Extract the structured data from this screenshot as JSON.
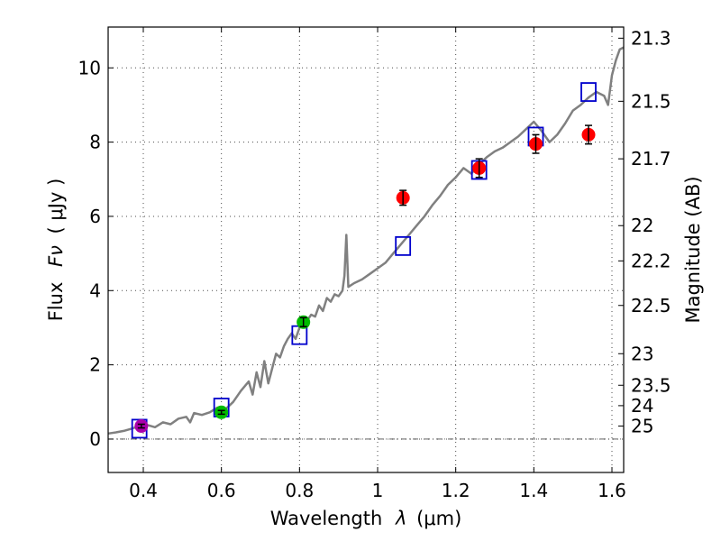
{
  "chart_data": {
    "type": "scatter",
    "xlabel": "Wavelength",
    "xlabel_symbol": "λ",
    "xlabel_unit": "(μm)",
    "ylabel": "Flux",
    "ylabel_symbol": "Fν",
    "ylabel_unit": "( μJy )",
    "y2label": "Magnitude (AB)",
    "xlim": [
      0.31,
      1.63
    ],
    "ylim": [
      -0.9,
      11.1
    ],
    "grid": true,
    "x_ticks": [
      0.4,
      0.6,
      0.8,
      1.0,
      1.2,
      1.4,
      1.6
    ],
    "x_tick_labels": [
      "0.4",
      "0.6",
      "0.8",
      "1",
      "1.2",
      "1.4",
      "1.6"
    ],
    "y_ticks": [
      0,
      2,
      4,
      6,
      8,
      10
    ],
    "y_tick_labels": [
      "0",
      "2",
      "4",
      "6",
      "8",
      "10"
    ],
    "magnitude_ticks": [
      {
        "label": "21.3",
        "flux": 10.8
      },
      {
        "label": "21.5",
        "flux": 9.1
      },
      {
        "label": "21.7",
        "flux": 7.55
      },
      {
        "label": "22",
        "flux": 5.75
      },
      {
        "label": "22.2",
        "flux": 4.8
      },
      {
        "label": "22.5",
        "flux": 3.6
      },
      {
        "label": "23",
        "flux": 2.3
      },
      {
        "label": "23.5",
        "flux": 1.45
      },
      {
        "label": "24",
        "flux": 0.9
      },
      {
        "label": "25",
        "flux": 0.35
      }
    ],
    "series": [
      {
        "name": "template spectrum",
        "kind": "line",
        "color": "#808080",
        "points": [
          [
            0.31,
            0.15
          ],
          [
            0.33,
            0.18
          ],
          [
            0.35,
            0.22
          ],
          [
            0.37,
            0.28
          ],
          [
            0.39,
            0.35
          ],
          [
            0.41,
            0.38
          ],
          [
            0.43,
            0.32
          ],
          [
            0.45,
            0.45
          ],
          [
            0.47,
            0.4
          ],
          [
            0.49,
            0.55
          ],
          [
            0.51,
            0.6
          ],
          [
            0.52,
            0.45
          ],
          [
            0.53,
            0.7
          ],
          [
            0.55,
            0.65
          ],
          [
            0.57,
            0.72
          ],
          [
            0.59,
            0.85
          ],
          [
            0.61,
            0.8
          ],
          [
            0.63,
            1.0
          ],
          [
            0.65,
            1.3
          ],
          [
            0.67,
            1.55
          ],
          [
            0.68,
            1.2
          ],
          [
            0.69,
            1.8
          ],
          [
            0.7,
            1.4
          ],
          [
            0.71,
            2.1
          ],
          [
            0.72,
            1.5
          ],
          [
            0.73,
            1.9
          ],
          [
            0.74,
            2.3
          ],
          [
            0.75,
            2.2
          ],
          [
            0.76,
            2.5
          ],
          [
            0.77,
            2.7
          ],
          [
            0.78,
            2.85
          ],
          [
            0.79,
            2.7
          ],
          [
            0.8,
            3.0
          ],
          [
            0.81,
            3.1
          ],
          [
            0.82,
            3.2
          ],
          [
            0.83,
            3.35
          ],
          [
            0.84,
            3.3
          ],
          [
            0.85,
            3.6
          ],
          [
            0.86,
            3.45
          ],
          [
            0.87,
            3.8
          ],
          [
            0.88,
            3.7
          ],
          [
            0.89,
            3.9
          ],
          [
            0.9,
            3.85
          ],
          [
            0.91,
            4.0
          ],
          [
            0.915,
            4.4
          ],
          [
            0.92,
            5.5
          ],
          [
            0.925,
            4.1
          ],
          [
            0.94,
            4.2
          ],
          [
            0.96,
            4.3
          ],
          [
            0.98,
            4.45
          ],
          [
            1.0,
            4.6
          ],
          [
            1.02,
            4.75
          ],
          [
            1.04,
            5.0
          ],
          [
            1.06,
            5.25
          ],
          [
            1.08,
            5.5
          ],
          [
            1.1,
            5.75
          ],
          [
            1.12,
            6.0
          ],
          [
            1.14,
            6.3
          ],
          [
            1.16,
            6.55
          ],
          [
            1.18,
            6.85
          ],
          [
            1.2,
            7.05
          ],
          [
            1.22,
            7.3
          ],
          [
            1.24,
            7.15
          ],
          [
            1.26,
            7.4
          ],
          [
            1.28,
            7.6
          ],
          [
            1.3,
            7.75
          ],
          [
            1.32,
            7.85
          ],
          [
            1.34,
            8.0
          ],
          [
            1.36,
            8.15
          ],
          [
            1.38,
            8.35
          ],
          [
            1.4,
            8.55
          ],
          [
            1.42,
            8.3
          ],
          [
            1.44,
            8.0
          ],
          [
            1.46,
            8.2
          ],
          [
            1.48,
            8.5
          ],
          [
            1.5,
            8.85
          ],
          [
            1.52,
            9.0
          ],
          [
            1.54,
            9.2
          ],
          [
            1.56,
            9.35
          ],
          [
            1.58,
            9.25
          ],
          [
            1.59,
            9.0
          ],
          [
            1.6,
            9.8
          ],
          [
            1.61,
            10.2
          ],
          [
            1.62,
            10.5
          ],
          [
            1.63,
            10.55
          ]
        ]
      },
      {
        "name": "model synthetic photometry",
        "kind": "open-square",
        "color": "#0000cc",
        "points": [
          [
            0.39,
            0.28
          ],
          [
            0.6,
            0.85
          ],
          [
            0.8,
            2.8
          ],
          [
            1.065,
            5.2
          ],
          [
            1.26,
            7.25
          ],
          [
            1.405,
            8.15
          ],
          [
            1.54,
            9.35
          ]
        ]
      },
      {
        "name": "observed photometry (purple)",
        "kind": "filled-circle",
        "color": "#aa00aa",
        "points": [
          {
            "x": 0.395,
            "y": 0.35,
            "err": 0.05
          }
        ]
      },
      {
        "name": "observed photometry (green)",
        "kind": "filled-circle",
        "color": "#00bb00",
        "points": [
          {
            "x": 0.6,
            "y": 0.72,
            "err": 0.05
          },
          {
            "x": 0.81,
            "y": 3.15,
            "err": 0.12
          }
        ]
      },
      {
        "name": "observed photometry (red)",
        "kind": "filled-circle",
        "color": "#ff0000",
        "points": [
          {
            "x": 1.065,
            "y": 6.5,
            "err": 0.2
          },
          {
            "x": 1.26,
            "y": 7.3,
            "err": 0.25
          },
          {
            "x": 1.405,
            "y": 7.95,
            "err": 0.25
          },
          {
            "x": 1.54,
            "y": 8.2,
            "err": 0.25
          }
        ]
      }
    ]
  }
}
